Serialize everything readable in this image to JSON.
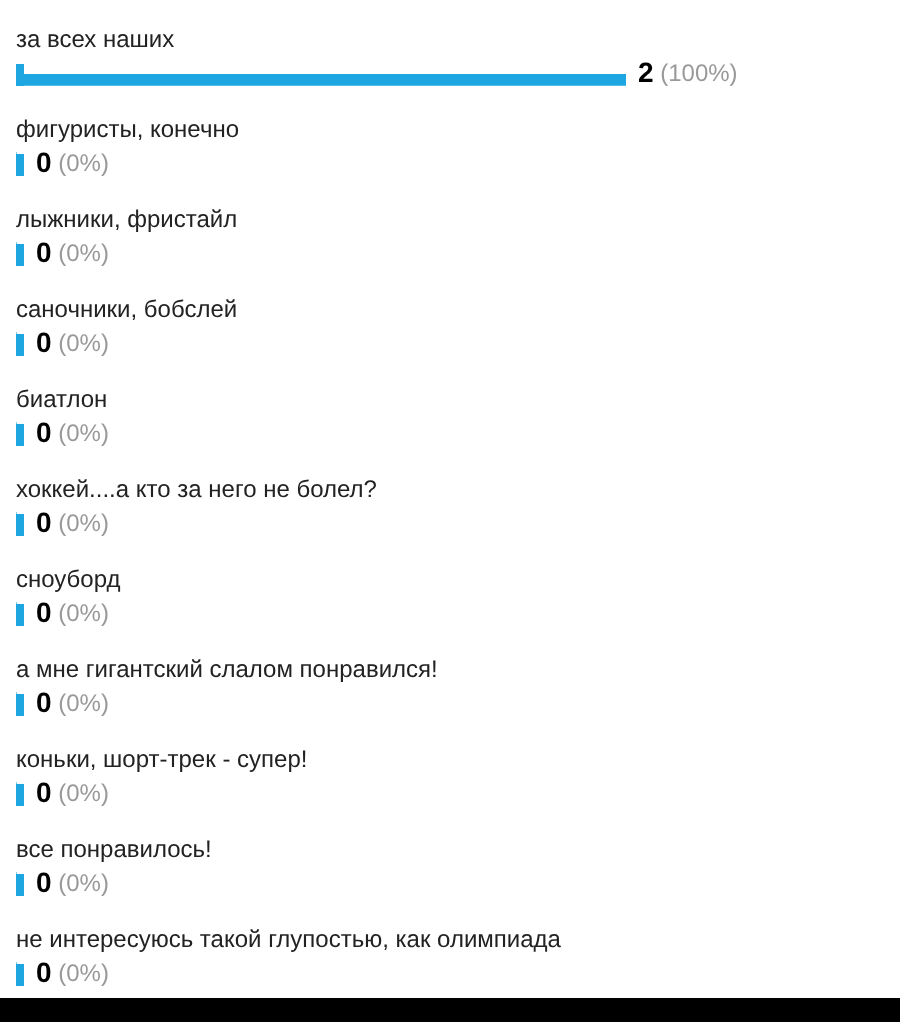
{
  "chart_data": {
    "type": "bar",
    "orientation": "horizontal",
    "color": "#1ea6e0",
    "categories": [
      "за всех наших",
      "фигуристы, конечно",
      "лыжники, фристайл",
      "саночники, бобслей",
      "биатлон",
      "хоккей....а кто за него не болел?",
      "сноуборд",
      "а мне гигантский слалом понравился!",
      "коньки, шорт-трек - супер!",
      "все понравилось!",
      "не интересуюсь такой глупостью, как олимпиада"
    ],
    "values": [
      2,
      0,
      0,
      0,
      0,
      0,
      0,
      0,
      0,
      0,
      0
    ],
    "value_labels": [
      "2 (100%)",
      "0 (0%)",
      "0 (0%)",
      "0 (0%)",
      "0 (0%)",
      "0 (0%)",
      "0 (0%)",
      "0 (0%)",
      "0 (0%)",
      "0 (0%)",
      "0 (0%)"
    ],
    "legend": false,
    "grid": false
  }
}
